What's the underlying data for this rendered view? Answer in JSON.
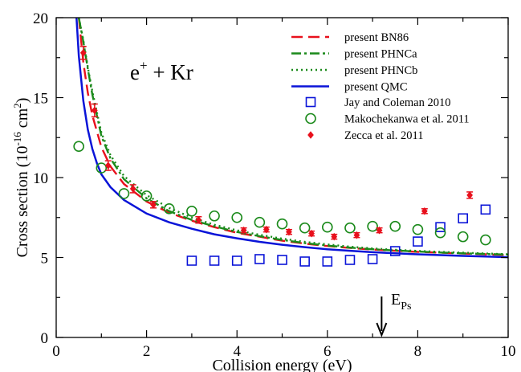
{
  "chart_data": {
    "type": "line",
    "xlabel": "Collision energy (eV)",
    "ylabel": {
      "prefix": "Cross section (10",
      "exp1": "-16",
      "mid": " cm",
      "exp2": "2",
      "suffix": ")"
    },
    "xlim": [
      0,
      10
    ],
    "ylim": [
      0,
      20
    ],
    "xticks": [
      0,
      2,
      4,
      6,
      8,
      10
    ],
    "yticks": [
      0,
      5,
      10,
      15,
      20
    ],
    "grid": false,
    "legend_position": "top-right",
    "annotation": {
      "title_base": "e",
      "title_sup": "+",
      "title_rest": " + Kr",
      "eps_label_base": "E",
      "eps_label_sub": "Ps",
      "eps_value": 7.2
    },
    "curves": [
      {
        "name": "present BN86",
        "color": "#e8101c",
        "style": "dashed",
        "points": [
          [
            0.5,
            20.0
          ],
          [
            0.6,
            17.2
          ],
          [
            0.7,
            15.3
          ],
          [
            0.8,
            13.9
          ],
          [
            1.0,
            11.9
          ],
          [
            1.2,
            10.7
          ],
          [
            1.5,
            9.6
          ],
          [
            2.0,
            8.5
          ],
          [
            2.5,
            7.8
          ],
          [
            3.0,
            7.3
          ],
          [
            3.5,
            6.9
          ],
          [
            4.0,
            6.55
          ],
          [
            4.5,
            6.3
          ],
          [
            5.0,
            6.05
          ],
          [
            5.5,
            5.87
          ],
          [
            6.0,
            5.72
          ],
          [
            6.5,
            5.6
          ],
          [
            7.0,
            5.5
          ],
          [
            7.5,
            5.42
          ],
          [
            8.0,
            5.35
          ],
          [
            8.5,
            5.3
          ],
          [
            9.0,
            5.25
          ],
          [
            9.5,
            5.2
          ],
          [
            10.0,
            5.15
          ]
        ]
      },
      {
        "name": "present PHNCa",
        "color": "#1b8a1b",
        "style": "dashdot",
        "points": [
          [
            0.5,
            20.0
          ],
          [
            0.6,
            18.5
          ],
          [
            0.7,
            16.8
          ],
          [
            0.8,
            15.2
          ],
          [
            1.0,
            12.6
          ],
          [
            1.2,
            11.2
          ],
          [
            1.5,
            9.9
          ],
          [
            2.0,
            8.7
          ],
          [
            2.5,
            7.9
          ],
          [
            3.0,
            7.35
          ],
          [
            3.5,
            6.95
          ],
          [
            4.0,
            6.6
          ],
          [
            4.5,
            6.33
          ],
          [
            5.0,
            6.1
          ],
          [
            5.5,
            5.9
          ],
          [
            6.0,
            5.75
          ],
          [
            6.5,
            5.62
          ],
          [
            7.0,
            5.52
          ],
          [
            7.5,
            5.44
          ],
          [
            8.0,
            5.37
          ],
          [
            8.5,
            5.31
          ],
          [
            9.0,
            5.26
          ],
          [
            9.5,
            5.22
          ],
          [
            10.0,
            5.18
          ]
        ]
      },
      {
        "name": "present PHNCb",
        "color": "#1b8a1b",
        "style": "dotted",
        "points": [
          [
            0.5,
            20.0
          ],
          [
            0.6,
            18.6
          ],
          [
            0.7,
            16.9
          ],
          [
            0.8,
            15.4
          ],
          [
            1.0,
            12.8
          ],
          [
            1.2,
            11.4
          ],
          [
            1.5,
            10.1
          ],
          [
            2.0,
            8.9
          ],
          [
            2.5,
            8.1
          ],
          [
            3.0,
            7.5
          ],
          [
            3.5,
            7.05
          ],
          [
            4.0,
            6.7
          ],
          [
            4.5,
            6.42
          ],
          [
            5.0,
            6.18
          ],
          [
            5.5,
            5.98
          ],
          [
            6.0,
            5.82
          ],
          [
            6.5,
            5.68
          ],
          [
            7.0,
            5.57
          ],
          [
            7.5,
            5.48
          ],
          [
            8.0,
            5.41
          ],
          [
            8.5,
            5.35
          ],
          [
            9.0,
            5.3
          ],
          [
            9.5,
            5.25
          ],
          [
            10.0,
            5.2
          ]
        ]
      },
      {
        "name": "present QMC",
        "color": "#0a14d8",
        "style": "solid",
        "points": [
          [
            0.45,
            20.0
          ],
          [
            0.5,
            17.6
          ],
          [
            0.6,
            14.8
          ],
          [
            0.7,
            13.0
          ],
          [
            0.8,
            11.8
          ],
          [
            0.9,
            10.9
          ],
          [
            1.0,
            10.2
          ],
          [
            1.2,
            9.4
          ],
          [
            1.5,
            8.6
          ],
          [
            2.0,
            7.75
          ],
          [
            2.5,
            7.2
          ],
          [
            3.0,
            6.8
          ],
          [
            3.5,
            6.45
          ],
          [
            4.0,
            6.2
          ],
          [
            4.5,
            5.98
          ],
          [
            5.0,
            5.8
          ],
          [
            5.5,
            5.65
          ],
          [
            6.0,
            5.52
          ],
          [
            6.5,
            5.42
          ],
          [
            7.0,
            5.33
          ],
          [
            7.5,
            5.26
          ],
          [
            8.0,
            5.2
          ],
          [
            8.5,
            5.15
          ],
          [
            9.0,
            5.1
          ],
          [
            9.5,
            5.06
          ],
          [
            10.0,
            5.02
          ]
        ]
      }
    ],
    "datasets": [
      {
        "name": "Jay and Coleman 2010",
        "color": "#0a14d8",
        "marker": "square",
        "points": [
          [
            3.0,
            4.8
          ],
          [
            3.5,
            4.8
          ],
          [
            4.0,
            4.8
          ],
          [
            4.5,
            4.9
          ],
          [
            5.0,
            4.85
          ],
          [
            5.5,
            4.75
          ],
          [
            6.0,
            4.75
          ],
          [
            6.5,
            4.85
          ],
          [
            7.0,
            4.9
          ],
          [
            7.5,
            5.4
          ],
          [
            8.0,
            6.0
          ],
          [
            8.5,
            6.9
          ],
          [
            9.0,
            7.45
          ],
          [
            9.5,
            8.0
          ]
        ]
      },
      {
        "name": "Makochekanwa et al. 2011",
        "color": "#1b8a1b",
        "marker": "circle",
        "points": [
          [
            0.5,
            11.95
          ],
          [
            1.0,
            10.6
          ],
          [
            1.5,
            9.0
          ],
          [
            2.0,
            8.85
          ],
          [
            2.5,
            8.05
          ],
          [
            3.0,
            7.9
          ],
          [
            3.5,
            7.6
          ],
          [
            4.0,
            7.5
          ],
          [
            4.5,
            7.2
          ],
          [
            5.0,
            7.1
          ],
          [
            5.5,
            6.85
          ],
          [
            6.0,
            6.9
          ],
          [
            6.5,
            6.85
          ],
          [
            7.0,
            6.95
          ],
          [
            7.5,
            6.95
          ],
          [
            8.0,
            6.75
          ],
          [
            8.5,
            6.55
          ],
          [
            9.0,
            6.3
          ],
          [
            9.5,
            6.1
          ]
        ]
      },
      {
        "name": "Zecca et al. 2011",
        "color": "#e8101c",
        "marker": "diamond",
        "points": [
          [
            0.6,
            17.8,
            0.4
          ],
          [
            0.85,
            14.2,
            0.4
          ],
          [
            1.15,
            10.75,
            0.3
          ],
          [
            1.7,
            9.3,
            0.25
          ],
          [
            2.15,
            8.3,
            0.2
          ],
          [
            3.15,
            7.35,
            0.2
          ],
          [
            4.15,
            6.7,
            0.15
          ],
          [
            4.65,
            6.75,
            0.15
          ],
          [
            5.15,
            6.6,
            0.15
          ],
          [
            5.65,
            6.5,
            0.15
          ],
          [
            6.15,
            6.3,
            0.15
          ],
          [
            6.65,
            6.4,
            0.15
          ],
          [
            7.15,
            6.7,
            0.15
          ],
          [
            8.15,
            7.9,
            0.15
          ],
          [
            9.15,
            8.9,
            0.2
          ]
        ]
      }
    ]
  }
}
